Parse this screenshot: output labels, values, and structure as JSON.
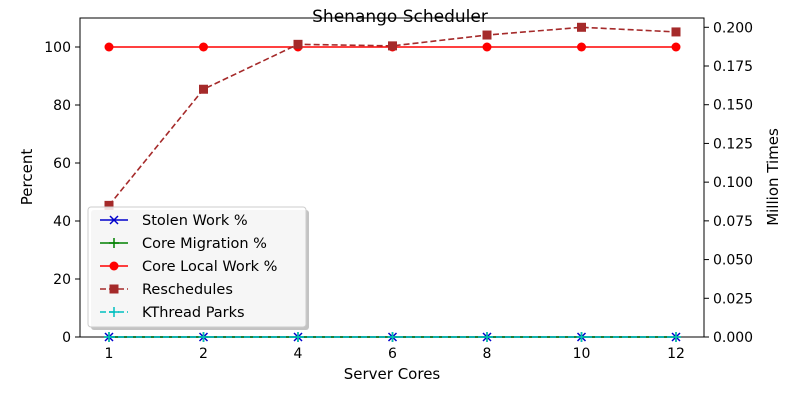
{
  "chart_data": {
    "type": "line",
    "title": "Shenango Scheduler",
    "xlabel": "Server Cores",
    "ylabel_left": "Percent",
    "ylabel_right": "Million Times",
    "categories": [
      "1",
      "2",
      "4",
      "6",
      "8",
      "10",
      "12"
    ],
    "ylim_left": [
      0,
      110
    ],
    "ylim_right": [
      0,
      0.206
    ],
    "yticks_left": [
      "0",
      "20",
      "40",
      "60",
      "80",
      "100"
    ],
    "yticks_right": [
      "0.000",
      "0.025",
      "0.050",
      "0.075",
      "0.100",
      "0.125",
      "0.150",
      "0.175",
      "0.200"
    ],
    "grid": false,
    "legend_position": "lower-left",
    "series": [
      {
        "name": "Stolen Work %",
        "axis": "left",
        "color": "#0000cc",
        "marker": "x",
        "dash": "solid",
        "values": [
          0,
          0,
          0,
          0,
          0,
          0,
          0
        ]
      },
      {
        "name": "Core Migration %",
        "axis": "left",
        "color": "#008000",
        "marker": "plus",
        "dash": "solid",
        "values": [
          0,
          0,
          0,
          0,
          0,
          0,
          0
        ]
      },
      {
        "name": "Core Local Work %",
        "axis": "left",
        "color": "#ff0000",
        "marker": "circle",
        "dash": "solid",
        "values": [
          100,
          100,
          100,
          100,
          100,
          100,
          100
        ]
      },
      {
        "name": "Reschedules",
        "axis": "right",
        "color": "#a52a2a",
        "marker": "square",
        "dash": "dashed",
        "values": [
          0.085,
          0.16,
          0.189,
          0.188,
          0.195,
          0.2,
          0.197
        ]
      },
      {
        "name": "KThread Parks",
        "axis": "right",
        "color": "#00bfbf",
        "marker": "plus",
        "dash": "dashed",
        "values": [
          0,
          0,
          0,
          0,
          0,
          0,
          0
        ]
      }
    ]
  }
}
